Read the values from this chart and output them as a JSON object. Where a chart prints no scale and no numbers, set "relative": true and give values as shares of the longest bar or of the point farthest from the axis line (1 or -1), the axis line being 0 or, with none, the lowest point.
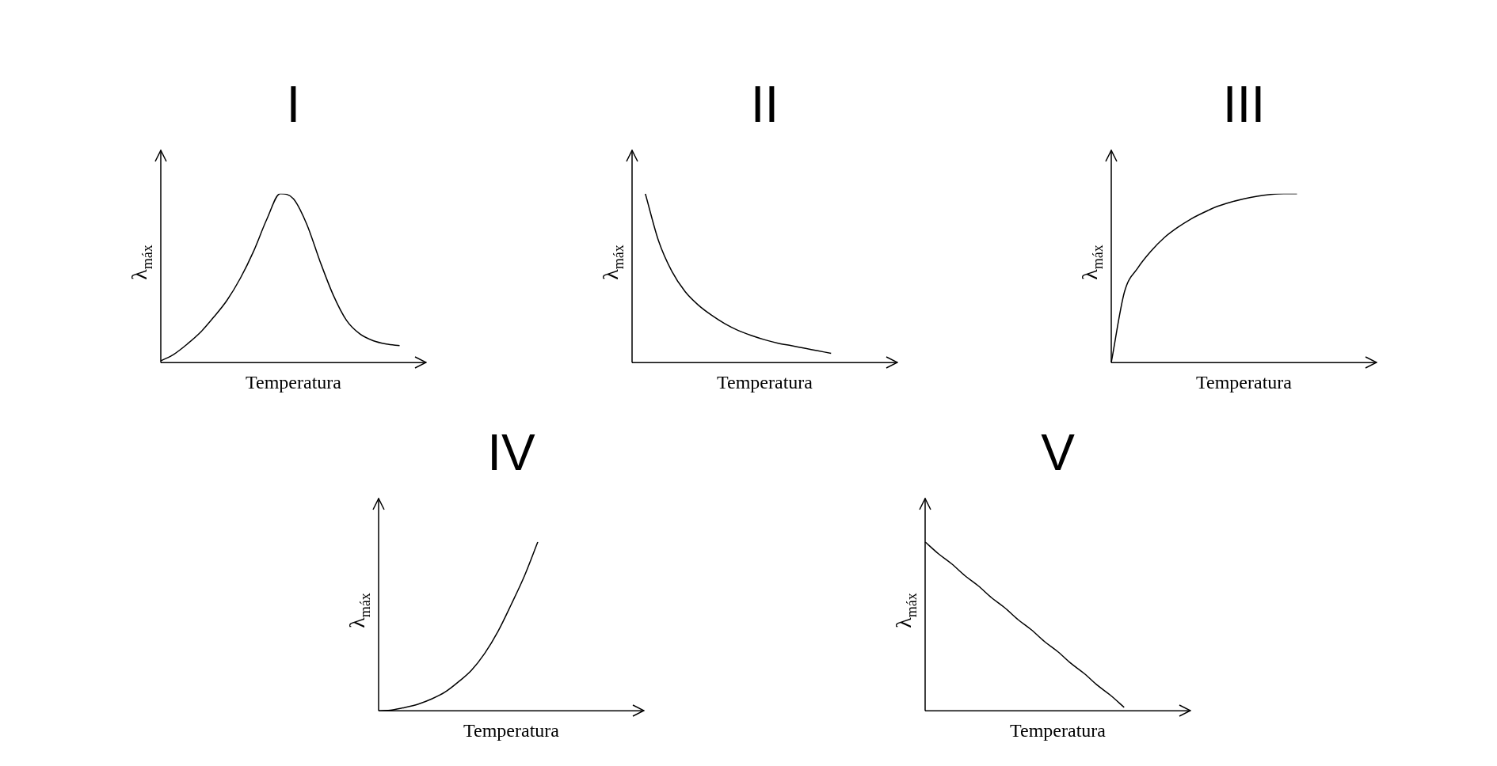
{
  "chart_data": [
    {
      "type": "line",
      "title": "I",
      "xlabel": "Temperatura",
      "ylabel": "λ$_{máx}$",
      "relative": true,
      "color": "#000000",
      "categories": [
        null,
        null,
        null,
        null,
        null,
        null,
        null,
        null,
        null,
        null,
        null,
        null,
        null,
        null,
        null,
        null,
        null,
        null,
        null,
        null,
        null
      ],
      "values": [
        0.01,
        0.05,
        0.11,
        0.18,
        0.27,
        0.37,
        0.5,
        0.66,
        0.85,
        1,
        0.97,
        0.82,
        0.6,
        0.4,
        0.25,
        0.17,
        0.13,
        0.11,
        0.1,
        null,
        null
      ]
    },
    {
      "type": "line",
      "title": "II",
      "xlabel": "Temperatura",
      "ylabel": "λ$_{máx}$",
      "relative": true,
      "color": "#000000",
      "categories": [
        null,
        null,
        null,
        null,
        null,
        null,
        null,
        null,
        null,
        null,
        null,
        null,
        null,
        null,
        null,
        null,
        null,
        null,
        null,
        null,
        null
      ],
      "values": [
        null,
        1,
        0.72,
        0.54,
        0.42,
        0.34,
        0.28,
        0.23,
        0.19,
        0.16,
        0.135,
        0.115,
        0.1,
        0.085,
        0.07,
        0.055,
        null,
        null,
        null,
        null,
        null
      ]
    },
    {
      "type": "line",
      "title": "III",
      "xlabel": "Temperatura",
      "ylabel": "λ$_{máx}$",
      "relative": true,
      "color": "#000000",
      "categories": [
        null,
        null,
        null,
        null,
        null,
        null,
        null,
        null,
        null,
        null,
        null,
        null,
        null,
        null,
        null,
        null,
        null,
        null,
        null,
        null,
        null
      ],
      "values": [
        0,
        0.42,
        0.56,
        0.66,
        0.74,
        0.8,
        0.85,
        0.89,
        0.925,
        0.95,
        0.97,
        0.985,
        0.995,
        1,
        1,
        null,
        null,
        null,
        null,
        null,
        null
      ]
    },
    {
      "type": "line",
      "title": "IV",
      "xlabel": "Temperatura",
      "ylabel": "λ$_{máx}$",
      "relative": true,
      "color": "#000000",
      "categories": [
        null,
        null,
        null,
        null,
        null,
        null,
        null,
        null,
        null,
        null,
        null,
        null,
        null,
        null,
        null,
        null,
        null,
        null,
        null,
        null,
        null
      ],
      "values": [
        0,
        0.005,
        0.02,
        0.04,
        0.07,
        0.11,
        0.17,
        0.24,
        0.34,
        0.47,
        0.63,
        0.8,
        1,
        null,
        null,
        null,
        null,
        null,
        null,
        null,
        null
      ]
    },
    {
      "type": "line",
      "title": "V",
      "xlabel": "Temperatura",
      "ylabel": "λ$_{máx}$",
      "relative": true,
      "color": "#000000",
      "categories": [
        null,
        null,
        null,
        null,
        null,
        null,
        null,
        null,
        null,
        null,
        null,
        null,
        null,
        null,
        null,
        null,
        null,
        null,
        null,
        null,
        null
      ],
      "values": [
        1,
        0.93,
        0.87,
        0.8,
        0.74,
        0.67,
        0.61,
        0.54,
        0.48,
        0.41,
        0.35,
        0.28,
        0.22,
        0.15,
        0.09,
        0.02,
        null,
        null,
        null,
        null,
        null
      ]
    }
  ]
}
